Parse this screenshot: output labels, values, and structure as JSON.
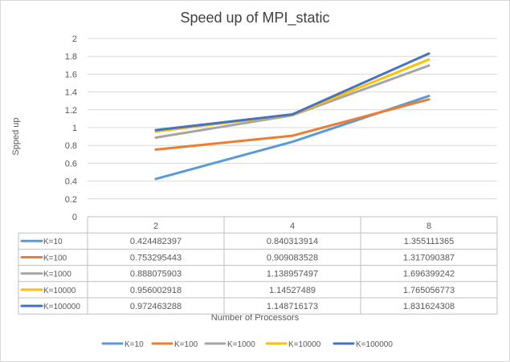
{
  "chart_data": {
    "type": "line",
    "title": "Speed up of MPI_static",
    "xlabel": "Number of Processors",
    "ylabel": "Spped up",
    "categories": [
      "2",
      "4",
      "8"
    ],
    "ylim": [
      0,
      2
    ],
    "yticks": [
      "0",
      "0.2",
      "0.4",
      "0.6",
      "0.8",
      "1",
      "1.2",
      "1.4",
      "1.6",
      "1.8",
      "2"
    ],
    "grid": true,
    "legend_position": "bottom",
    "data_table": true,
    "series": [
      {
        "name": "K=10",
        "color": "#5b9bd5",
        "values": [
          0.424482397,
          0.840313914,
          1.355111365
        ],
        "labels": [
          "0.424482397",
          "0.840313914",
          "1.355111365"
        ]
      },
      {
        "name": "K=100",
        "color": "#ed7d31",
        "values": [
          0.753295443,
          0.909083528,
          1.317090387
        ],
        "labels": [
          "0.753295443",
          "0.909083528",
          "1.317090387"
        ]
      },
      {
        "name": "K=1000",
        "color": "#a5a5a5",
        "values": [
          0.888075903,
          1.138957497,
          1.696399242
        ],
        "labels": [
          "0.888075903",
          "1.138957497",
          "1.696399242"
        ]
      },
      {
        "name": "K=10000",
        "color": "#ffc000",
        "values": [
          0.956002918,
          1.14527489,
          1.765056773
        ],
        "labels": [
          "0.956002918",
          "1.14527489",
          "1.765056773"
        ]
      },
      {
        "name": "K=100000",
        "color": "#4472c4",
        "values": [
          0.972463288,
          1.148716173,
          1.831624308
        ],
        "labels": [
          "0.972463288",
          "1.148716173",
          "1.831624308"
        ]
      }
    ]
  }
}
